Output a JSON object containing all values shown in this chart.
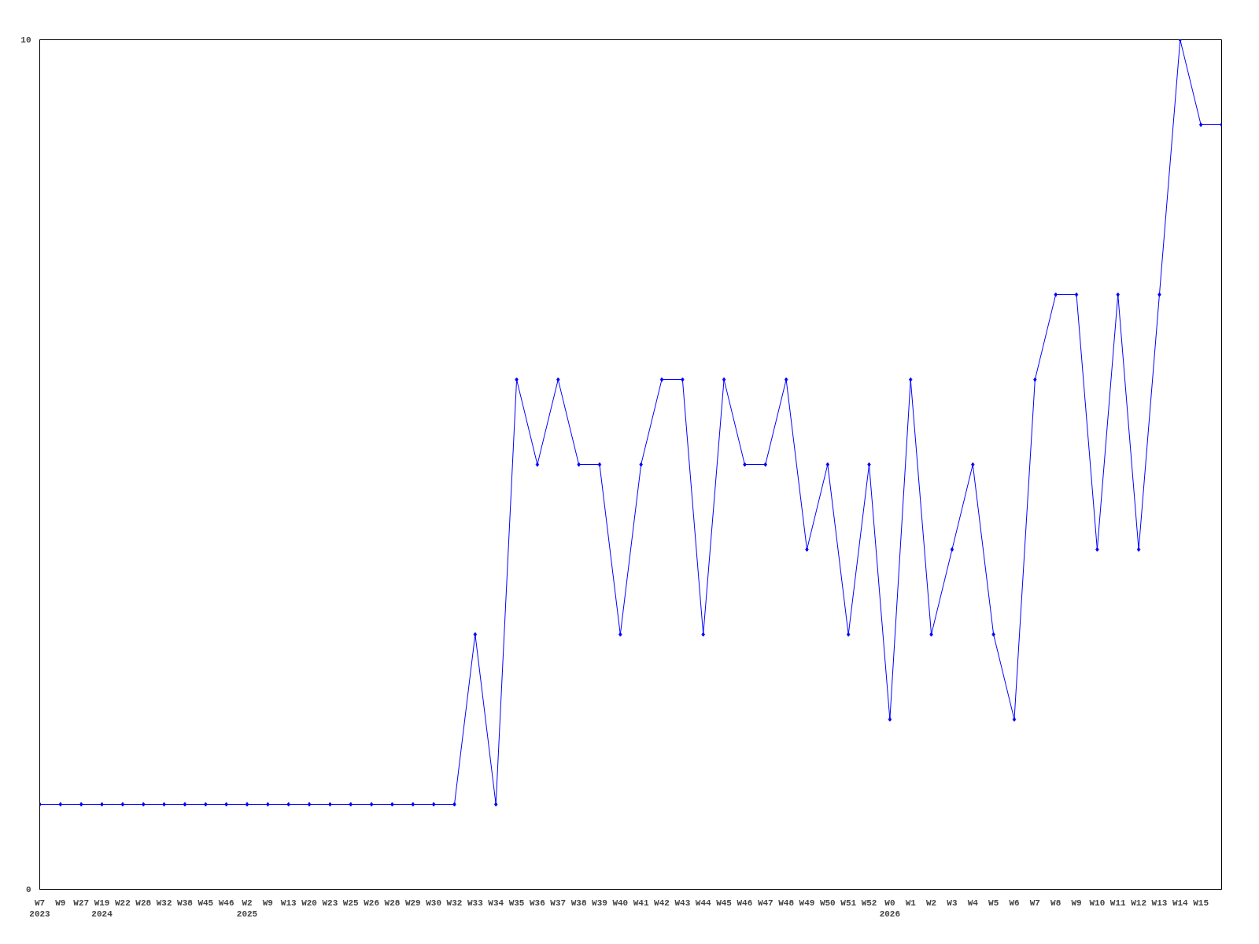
{
  "chart_data": {
    "type": "line",
    "categories": [
      "W7\n2023",
      "W9",
      "W27",
      "W19\n2024",
      "W22",
      "W28",
      "W32",
      "W38",
      "W45",
      "W46",
      "W2\n2025",
      "W9",
      "W13",
      "W20",
      "W23",
      "W25",
      "W26",
      "W28",
      "W29",
      "W30",
      "W32",
      "W33",
      "W34",
      "W35",
      "W36",
      "W37",
      "W38",
      "W39",
      "W40",
      "W41",
      "W42",
      "W43",
      "W44",
      "W45",
      "W46",
      "W47",
      "W48",
      "W49",
      "W50",
      "W51",
      "W52",
      "W0\n2026",
      "W1",
      "W2",
      "W3",
      "W4",
      "W5",
      "W6",
      "W7",
      "W8",
      "W9",
      "W10",
      "W11",
      "W12",
      "W13",
      "W14",
      "W15",
      null
    ],
    "series": [
      {
        "color": "#0000ff",
        "values": [
          1,
          1,
          1,
          1,
          1,
          1,
          1,
          1,
          1,
          1,
          1,
          1,
          1,
          1,
          1,
          1,
          1,
          1,
          1,
          1,
          1,
          3,
          1,
          6,
          5,
          6,
          5,
          5,
          3,
          5,
          6,
          6,
          3,
          6,
          5,
          5,
          6,
          4,
          5,
          3,
          5,
          2,
          6,
          3,
          4,
          5,
          3,
          2,
          6,
          7,
          7,
          4,
          7,
          4,
          7,
          10,
          9,
          9
        ]
      }
    ],
    "ylim": [
      0,
      10
    ],
    "yticks": [
      0,
      10
    ],
    "grid": false,
    "marker": "diamond",
    "line_style": "solid"
  }
}
